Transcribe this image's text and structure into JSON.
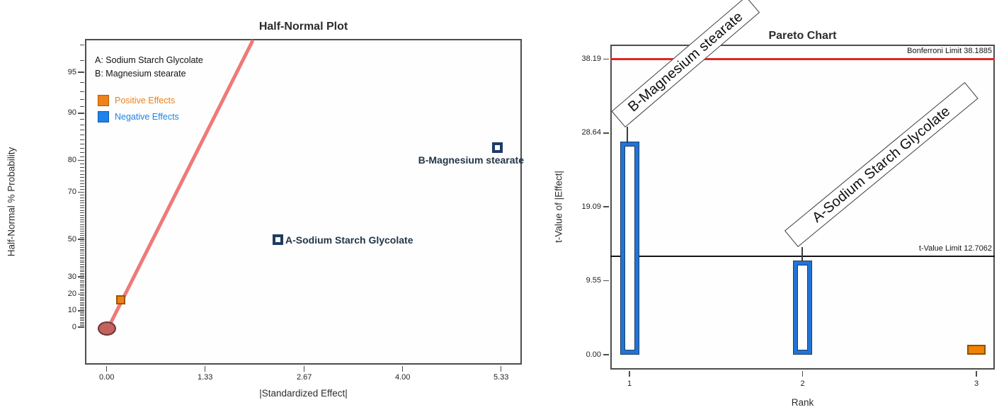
{
  "chart_data": [
    {
      "type": "scatter",
      "title": "Half-Normal Plot",
      "x_axis": {
        "label": "|Standardized Effect|",
        "tick_labels": [
          "0.00",
          "1.33",
          "2.67",
          "4.00",
          "5.33"
        ],
        "range": [
          0,
          5.62
        ]
      },
      "y_axis": {
        "label": "Half-Normal % Probability",
        "scale": "half-normal-quantile",
        "tick_labels": [
          "0",
          "10",
          "20",
          "30",
          "50",
          "70",
          "80",
          "90",
          "95"
        ]
      },
      "factors": [
        "A: Sodium Starch Glycolate",
        "B: Magnesium stearate"
      ],
      "legend": {
        "positive_label": "Positive Effects",
        "positive_color": "#f08019",
        "negative_label": "Negative Effects",
        "negative_color": "#1e83ea"
      },
      "points": [
        {
          "effect": 0.19,
          "half_normal_pct": 16.7,
          "sign": "positive",
          "label": ""
        },
        {
          "effect": 2.31,
          "half_normal_pct": 50.0,
          "sign": "negative",
          "label": "A-Sodium Starch Glycolate"
        },
        {
          "effect": 5.28,
          "half_normal_pct": 83.3,
          "sign": "negative",
          "label": "B-Magnesium stearate"
        }
      ],
      "zero_anchor": {
        "effect": 0.0,
        "half_normal_pct": 0.0
      },
      "fit_line_color": "#ee7a79",
      "error_point_color": "#c26360"
    },
    {
      "type": "bar",
      "title": "Pareto Chart",
      "x_axis": {
        "label": "Rank",
        "tick_labels": [
          "1",
          "2",
          "3"
        ]
      },
      "y_axis": {
        "label": "t-Value of |Effect|",
        "tick_labels": [
          "0.00",
          "9.55",
          "19.09",
          "28.64",
          "38.19"
        ],
        "range": [
          0,
          40.05
        ]
      },
      "bars": [
        {
          "rank": 1,
          "t_value": 27.5,
          "sign": "negative",
          "label": "B-Magnesium stearate"
        },
        {
          "rank": 2,
          "t_value": 12.2,
          "sign": "negative",
          "label": "A-Sodium Starch Glycolate"
        },
        {
          "rank": 3,
          "t_value": 1.3,
          "sign": "positive",
          "label": ""
        }
      ],
      "bonferroni_limit": 38.1885,
      "bonferroni_label": "Bonferroni Limit 38.1885",
      "bonferroni_color": "#dd2726",
      "t_value_limit": 12.7062,
      "t_value_limit_label": "t-Value Limit 12.7062",
      "t_value_limit_color": "#141414",
      "bar_colors": {
        "negative": "#2273d6",
        "positive": "#ef8200"
      }
    }
  ]
}
